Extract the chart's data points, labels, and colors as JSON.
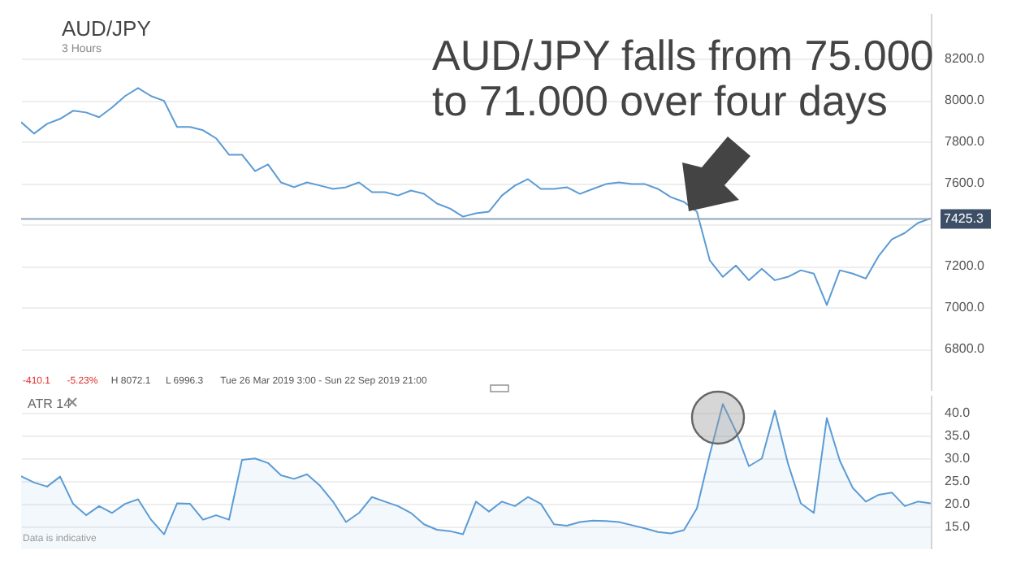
{
  "chart_data": [
    {
      "type": "line",
      "title": "AUD/JPY",
      "subtitle": "3 Hours",
      "annotations": [
        "AUD/JPY falls from 75.000 to 71.000 over four days",
        "-410.1",
        "-5.23%",
        "H 8072.1",
        "L 6996.3",
        "Tue 26 Mar 2019 3:00 - Sun 22 Sep 2019 21:00"
      ],
      "categories": [
        null,
        null,
        null,
        null,
        null,
        null,
        null,
        null,
        null,
        null,
        null,
        null,
        null,
        null,
        null,
        null,
        null,
        null,
        null,
        null,
        null,
        null,
        null,
        null,
        null,
        null,
        null,
        null,
        null,
        null,
        null,
        null,
        null,
        null,
        null,
        null,
        null,
        null,
        null,
        null,
        null,
        null,
        null,
        null,
        null,
        null,
        null,
        null,
        null,
        null,
        null,
        null,
        null,
        null,
        null,
        null,
        null,
        null,
        null,
        null,
        null,
        null,
        null,
        null,
        null,
        null,
        null,
        null,
        null,
        null,
        null
      ],
      "series": [
        {
          "color": "#5b9bd5",
          "values": [
            7893,
            7838,
            7885,
            7909,
            7948,
            7940,
            7917,
            7964,
            8019,
            8058,
            8019,
            7996,
            7870,
            7870,
            7854,
            7815,
            7736,
            7736,
            7657,
            7689,
            7602,
            7579,
            7602,
            7587,
            7571,
            7579,
            7602,
            7555,
            7555,
            7539,
            7563,
            7547,
            7500,
            7476,
            7437,
            7453,
            7461,
            7539,
            7587,
            7618,
            7571,
            7571,
            7579,
            7547,
            7571,
            7594,
            7602,
            7594,
            7594,
            7571,
            7531,
            7508,
            7461,
            7225,
            7146,
            7201,
            7130,
            7185,
            7130,
            7146,
            7178,
            7162,
            7010,
            7178,
            7162,
            7138,
            7248,
            7327,
            7358,
            7406,
            7429
          ]
        }
      ],
      "ylim": [
        6600,
        8420
      ],
      "yticks": [
        {
          "value": 6800,
          "label": "6800.0"
        },
        {
          "value": 7000,
          "label": "7000.0"
        },
        {
          "value": 7200,
          "label": "7200.0"
        },
        {
          "value": 7400,
          "label": null
        },
        {
          "value": 7600,
          "label": "7600.0"
        },
        {
          "value": 7800,
          "label": "7800.0"
        },
        {
          "value": 8000,
          "label": "8000.0"
        },
        {
          "value": 8200,
          "label": "8200.0"
        }
      ],
      "ref_lines": [
        {
          "axis": "y",
          "value": 7425.3,
          "label": "7425.3",
          "color": "#8fa3b8"
        }
      ],
      "grid": "y"
    },
    {
      "type": "area",
      "title": "ATR  14",
      "annotations": [
        "Data is indicative"
      ],
      "categories": [
        null,
        null,
        null,
        null,
        null,
        null,
        null,
        null,
        null,
        null,
        null,
        null,
        null,
        null,
        null,
        null,
        null,
        null,
        null,
        null,
        null,
        null,
        null,
        null,
        null,
        null,
        null,
        null,
        null,
        null,
        null,
        null,
        null,
        null,
        null,
        null,
        null,
        null,
        null,
        null,
        null,
        null,
        null,
        null,
        null,
        null,
        null,
        null,
        null,
        null,
        null,
        null,
        null,
        null,
        null,
        null,
        null,
        null,
        null,
        null,
        null,
        null,
        null,
        null,
        null,
        null,
        null,
        null,
        null,
        null,
        null
      ],
      "series": [
        {
          "color": "#5b9bd5",
          "values": [
            26.1,
            24.7,
            23.8,
            26.0,
            20.0,
            17.5,
            19.5,
            18.0,
            20.0,
            21.0,
            16.5,
            13.3,
            20.1,
            20.0,
            16.5,
            17.5,
            16.5,
            29.7,
            30.0,
            29.0,
            26.3,
            25.5,
            26.5,
            24.0,
            20.5,
            16.0,
            18.0,
            21.5,
            20.5,
            19.5,
            18.0,
            15.5,
            14.3,
            14.0,
            13.3,
            20.5,
            18.3,
            20.5,
            19.5,
            21.5,
            20.0,
            15.5,
            15.2,
            16.0,
            16.3,
            16.2,
            16.0,
            15.3,
            14.6,
            13.8,
            13.5,
            14.2,
            19.0,
            31.0,
            42.0,
            36.0,
            28.3,
            30.0,
            40.5,
            29.0,
            20.1,
            18.0,
            38.9,
            29.5,
            23.5,
            20.5,
            22.0,
            22.5,
            19.5,
            20.5,
            20.1
          ]
        }
      ],
      "ylim": [
        10,
        44
      ],
      "yticks": [
        {
          "value": 15,
          "label": "15.0"
        },
        {
          "value": 20,
          "label": "20.0"
        },
        {
          "value": 25,
          "label": "25.0"
        },
        {
          "value": 30,
          "label": "30.0"
        },
        {
          "value": 35,
          "label": "35.0"
        },
        {
          "value": 40,
          "label": "40.0"
        }
      ],
      "grid": "y"
    }
  ]
}
